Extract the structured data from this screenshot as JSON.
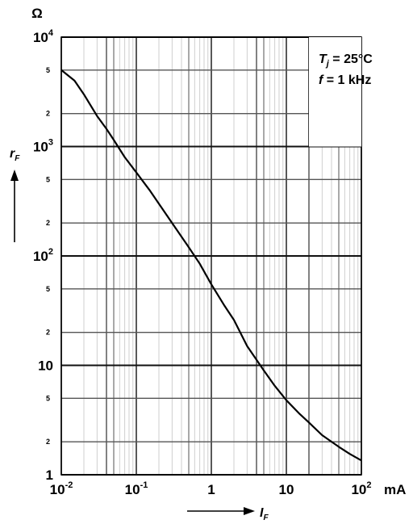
{
  "chart_data": {
    "type": "line",
    "x_scale": "log",
    "y_scale": "log",
    "xlim": [
      0.01,
      100
    ],
    "ylim": [
      1,
      10000
    ],
    "x_unit": "mA",
    "y_unit": "Ω",
    "x_axis_symbol": "I",
    "x_axis_subscript": "F",
    "y_axis_symbol": "r",
    "y_axis_subscript": "F",
    "x_tick_labels": [
      {
        "value": 0.01,
        "base": "10",
        "exp": "-2"
      },
      {
        "value": 0.1,
        "base": "10",
        "exp": "-1"
      },
      {
        "value": 1,
        "base": "1",
        "exp": ""
      },
      {
        "value": 10,
        "base": "10",
        "exp": ""
      },
      {
        "value": 100,
        "base": "10",
        "exp": "2"
      }
    ],
    "y_major_labels": [
      {
        "value": 10000,
        "base": "10",
        "exp": "4"
      },
      {
        "value": 1000,
        "base": "10",
        "exp": "3"
      },
      {
        "value": 100,
        "base": "10",
        "exp": "2"
      },
      {
        "value": 10,
        "base": "10",
        "exp": ""
      },
      {
        "value": 1,
        "base": "1",
        "exp": ""
      }
    ],
    "y_minor_labels": [
      {
        "value": 5000,
        "label": "5"
      },
      {
        "value": 2000,
        "label": "2"
      },
      {
        "value": 500,
        "label": "5"
      },
      {
        "value": 200,
        "label": "2"
      },
      {
        "value": 50,
        "label": "5"
      },
      {
        "value": 20,
        "label": "2"
      },
      {
        "value": 5,
        "label": "5"
      },
      {
        "value": 2,
        "label": "2"
      }
    ],
    "conditions": [
      {
        "symbol": "T",
        "subscript": "j",
        "text": " = 25°C"
      },
      {
        "symbol": "f",
        "subscript": "",
        "text": " = 1 kHz"
      }
    ],
    "series": [
      {
        "x": [
          0.01,
          0.015,
          0.02,
          0.03,
          0.04,
          0.05,
          0.07,
          0.1,
          0.15,
          0.2,
          0.3,
          0.5,
          0.7,
          1,
          1.5,
          2,
          3,
          5,
          7,
          10,
          15,
          20,
          30,
          50,
          70,
          100
        ],
        "y": [
          5000,
          4000,
          3000,
          1900,
          1450,
          1150,
          800,
          580,
          400,
          300,
          200,
          120,
          85,
          55,
          35,
          26,
          15,
          9,
          6.5,
          4.8,
          3.6,
          3,
          2.3,
          1.8,
          1.55,
          1.35
        ]
      }
    ]
  }
}
